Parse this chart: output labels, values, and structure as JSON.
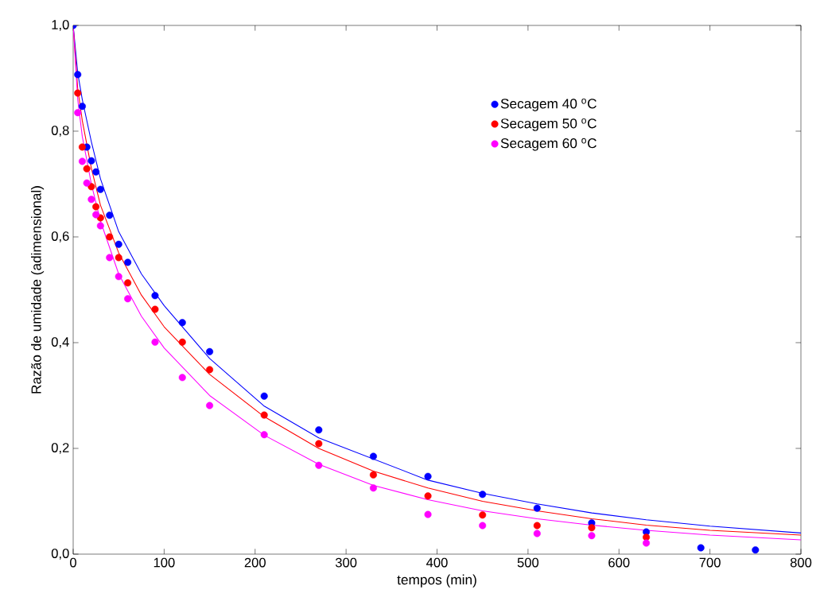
{
  "chart_data": {
    "type": "scatter",
    "xlabel": "tempos (min)",
    "ylabel": "Razão de umidade (adimensional)",
    "xlim": [
      0,
      800
    ],
    "ylim": [
      0,
      1
    ],
    "xticks": [
      0,
      100,
      200,
      300,
      400,
      500,
      600,
      700,
      800
    ],
    "yticks": [
      {
        "value": 0,
        "label": "0,0"
      },
      {
        "value": 0.2,
        "label": "0,2"
      },
      {
        "value": 0.4,
        "label": "0,4"
      },
      {
        "value": 0.6,
        "label": "0,6"
      },
      {
        "value": 0.8,
        "label": "0,8"
      },
      {
        "value": 1,
        "label": "1,0"
      }
    ],
    "grid": false,
    "legend": "top right",
    "marker": "circle",
    "series": [
      {
        "name": "Secagem 40 $^{o}$C",
        "color": "#0000ff",
        "x": [
          0,
          5,
          10,
          15,
          20,
          25,
          30,
          40,
          50,
          60,
          90,
          120,
          150,
          210,
          270,
          330,
          390,
          450,
          510,
          570,
          630,
          690,
          750
        ],
        "values": [
          1.0,
          0.907,
          0.847,
          0.77,
          0.744,
          0.723,
          0.69,
          0.641,
          0.586,
          0.552,
          0.489,
          0.438,
          0.383,
          0.299,
          0.235,
          0.185,
          0.147,
          0.113,
          0.087,
          0.059,
          0.042,
          0.012,
          0.008
        ]
      },
      {
        "name": "Secagem 50 $^{o}$C",
        "color": "#ff0000",
        "x": [
          5,
          10,
          15,
          20,
          25,
          30,
          40,
          50,
          60,
          90,
          120,
          150,
          210,
          270,
          330,
          390,
          450,
          510,
          570,
          630
        ],
        "values": [
          0.872,
          0.77,
          0.729,
          0.695,
          0.657,
          0.636,
          0.6,
          0.561,
          0.513,
          0.463,
          0.401,
          0.349,
          0.263,
          0.209,
          0.15,
          0.11,
          0.074,
          0.054,
          0.05,
          0.032
        ]
      },
      {
        "name": "Secagem 60 $^{o}$C",
        "color": "#ff00ff",
        "x": [
          5,
          10,
          15,
          20,
          25,
          30,
          40,
          50,
          60,
          90,
          120,
          150,
          210,
          270,
          330,
          390,
          450,
          510,
          570,
          630
        ],
        "values": [
          0.835,
          0.743,
          0.702,
          0.671,
          0.642,
          0.621,
          0.561,
          0.525,
          0.483,
          0.401,
          0.334,
          0.281,
          0.226,
          0.168,
          0.125,
          0.075,
          0.054,
          0.039,
          0.035,
          0.021
        ]
      },
      {
        "type": "line",
        "marker": "none",
        "color": "#0000ff",
        "x": [
          0,
          5,
          10,
          20,
          30,
          50,
          75,
          100,
          150,
          210,
          270,
          330,
          390,
          450,
          510,
          570,
          630,
          700,
          800
        ],
        "values": [
          1.0,
          0.91,
          0.86,
          0.78,
          0.71,
          0.61,
          0.53,
          0.47,
          0.37,
          0.28,
          0.22,
          0.18,
          0.14,
          0.115,
          0.095,
          0.078,
          0.065,
          0.053,
          0.04
        ]
      },
      {
        "type": "line",
        "marker": "none",
        "color": "#ff0000",
        "x": [
          0,
          5,
          10,
          20,
          30,
          50,
          75,
          100,
          150,
          210,
          270,
          330,
          390,
          450,
          510,
          570,
          630,
          700,
          800
        ],
        "values": [
          1.0,
          0.88,
          0.82,
          0.73,
          0.66,
          0.57,
          0.49,
          0.43,
          0.34,
          0.26,
          0.2,
          0.157,
          0.125,
          0.1,
          0.082,
          0.067,
          0.055,
          0.045,
          0.036
        ]
      },
      {
        "type": "line",
        "marker": "none",
        "color": "#ff00ff",
        "x": [
          0,
          5,
          10,
          20,
          30,
          50,
          75,
          100,
          150,
          210,
          270,
          330,
          390,
          450,
          510,
          570,
          630,
          700,
          800
        ],
        "values": [
          1.0,
          0.86,
          0.79,
          0.7,
          0.63,
          0.53,
          0.45,
          0.39,
          0.3,
          0.225,
          0.17,
          0.13,
          0.103,
          0.082,
          0.067,
          0.055,
          0.045,
          0.036,
          0.027
        ]
      }
    ]
  }
}
